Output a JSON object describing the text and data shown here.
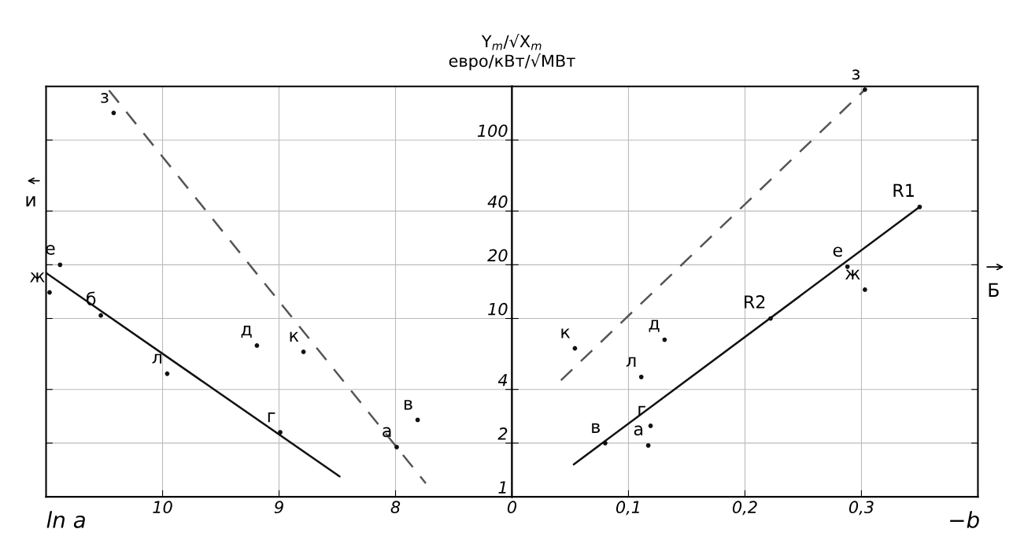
{
  "chart_data": [
    {
      "type": "line",
      "xlabel": "ln a",
      "ylabel": "Y$_{m}$/√X$_{m}$\nевро/кВт/√МВт",
      "log": "y",
      "grid": true,
      "tick_labels": "x",
      "xlim": [
        11,
        7
      ],
      "xticks": [
        10,
        9,
        8
      ],
      "ylim": [
        1,
        200
      ],
      "yticks": [
        1,
        2,
        4,
        10,
        20,
        40,
        100
      ],
      "series": [
        {
          "x": [
            11,
            8.48
          ],
          "values": [
            18,
            1.3
          ],
          "color": "#111111",
          "line_style": "solid"
        },
        {
          "x": [
            10.46,
            7.74
          ],
          "values": [
            190,
            1.19
          ],
          "color": "#555555",
          "line_style": "dashed"
        },
        {
          "type": "scatter",
          "color": "#111111",
          "marker": "circle",
          "x": [
            10.88,
            10.97,
            10.53,
            9.96,
            9.19,
            8.79,
            8.99,
            7.99,
            7.81,
            10.42
          ],
          "values": [
            20,
            14,
            10.4,
            4.9,
            7.05,
            6.5,
            2.3,
            1.9,
            2.7,
            142
          ],
          "value_labels": [
            "е",
            "ж",
            "б",
            "л",
            "д",
            "к",
            "г",
            "а",
            "в",
            "з"
          ]
        }
      ],
      "annotations": [
        "и"
      ]
    },
    {
      "type": "line",
      "xlabel": "−b",
      "log": "y",
      "grid": true,
      "xlim": [
        0,
        0.4
      ],
      "xticks": [
        {
          "value": 0,
          "label": "0"
        },
        {
          "value": 0.1,
          "label": "0,1"
        },
        {
          "value": 0.2,
          "label": "0,2"
        },
        {
          "value": 0.3,
          "label": "0,3"
        }
      ],
      "ylim": [
        1,
        200
      ],
      "yticks": [
        1,
        2,
        4,
        10,
        20,
        40,
        100
      ],
      "series": [
        {
          "x": [
            0.053,
            0.35
          ],
          "values": [
            1.52,
            42.2
          ],
          "color": "#111111",
          "line_style": "solid"
        },
        {
          "x": [
            0.042,
            0.303
          ],
          "values": [
            4.5,
            192
          ],
          "color": "#555555",
          "line_style": "dashed"
        },
        {
          "type": "scatter",
          "color": "#111111",
          "marker": "circle",
          "x": [
            0.303,
            0.35,
            0.222,
            0.288,
            0.303,
            0.131,
            0.111,
            0.054,
            0.08,
            0.119,
            0.117
          ],
          "values": [
            192,
            42.2,
            10,
            19.5,
            14.5,
            7.6,
            4.7,
            6.8,
            2.0,
            2.5,
            1.94
          ],
          "value_labels": [
            "з",
            "R1",
            "R2",
            "е",
            "ж",
            "д",
            "л",
            "к",
            "в",
            "г",
            "а"
          ]
        }
      ],
      "annotations": [
        "Б"
      ]
    }
  ]
}
